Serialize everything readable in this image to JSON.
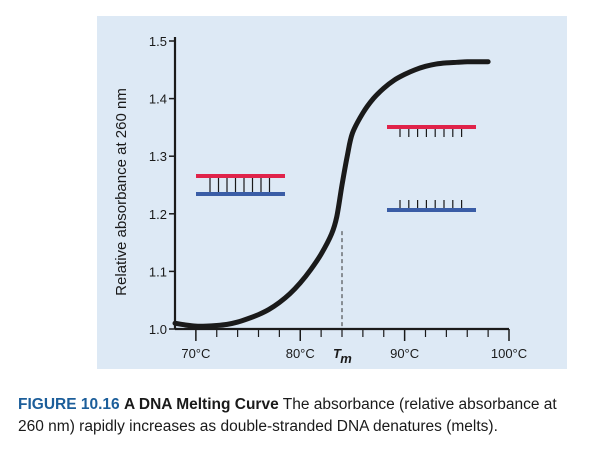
{
  "chart_data": {
    "type": "line",
    "ylabel": "Relative absorbance at 260 nm",
    "ylim": [
      1.0,
      1.5
    ],
    "y_ticks": [
      "1.0",
      "1.1",
      "1.2",
      "1.3",
      "1.4",
      "1.5"
    ],
    "xlim": [
      68,
      100
    ],
    "x_tick_labels": [
      {
        "value": 70,
        "label": "70°C"
      },
      {
        "value": 80,
        "label": "80°C"
      },
      {
        "value": 90,
        "label": "90°C"
      },
      {
        "value": 100,
        "label": "100°C"
      }
    ],
    "x_minor_ticks": [
      72,
      74,
      76,
      78,
      82,
      84,
      86,
      88,
      92,
      94,
      96,
      98
    ],
    "tm": {
      "x": 84,
      "label": "T",
      "subscript": "m"
    },
    "series": [
      {
        "x": [
          68,
          69,
          70,
          71,
          72,
          73,
          74,
          75,
          76,
          77,
          78,
          79,
          80,
          81,
          82,
          83,
          83.5,
          84,
          84.5,
          85,
          86,
          87,
          88,
          89,
          90,
          91,
          92,
          93,
          94,
          95,
          96,
          97,
          98
        ],
        "y": [
          1.01,
          1.007,
          1.005,
          1.005,
          1.006,
          1.008,
          1.012,
          1.018,
          1.025,
          1.034,
          1.046,
          1.061,
          1.08,
          1.103,
          1.13,
          1.165,
          1.195,
          1.25,
          1.3,
          1.34,
          1.375,
          1.4,
          1.418,
          1.432,
          1.442,
          1.45,
          1.456,
          1.46,
          1.462,
          1.463,
          1.464,
          1.464,
          1.464
        ]
      }
    ],
    "grid": false,
    "plot_background": "#dde9f5",
    "line_color": "#1a1a1a",
    "strand_colors": {
      "red": "#e0234a",
      "blue": "#3a5da6"
    }
  },
  "caption": {
    "figure_label": "FIGURE 10.16",
    "title": "A DNA Melting Curve",
    "text": "The absorbance (relative absorbance at 260 nm) rapidly increases as double-stranded DNA denatures (melts)."
  }
}
